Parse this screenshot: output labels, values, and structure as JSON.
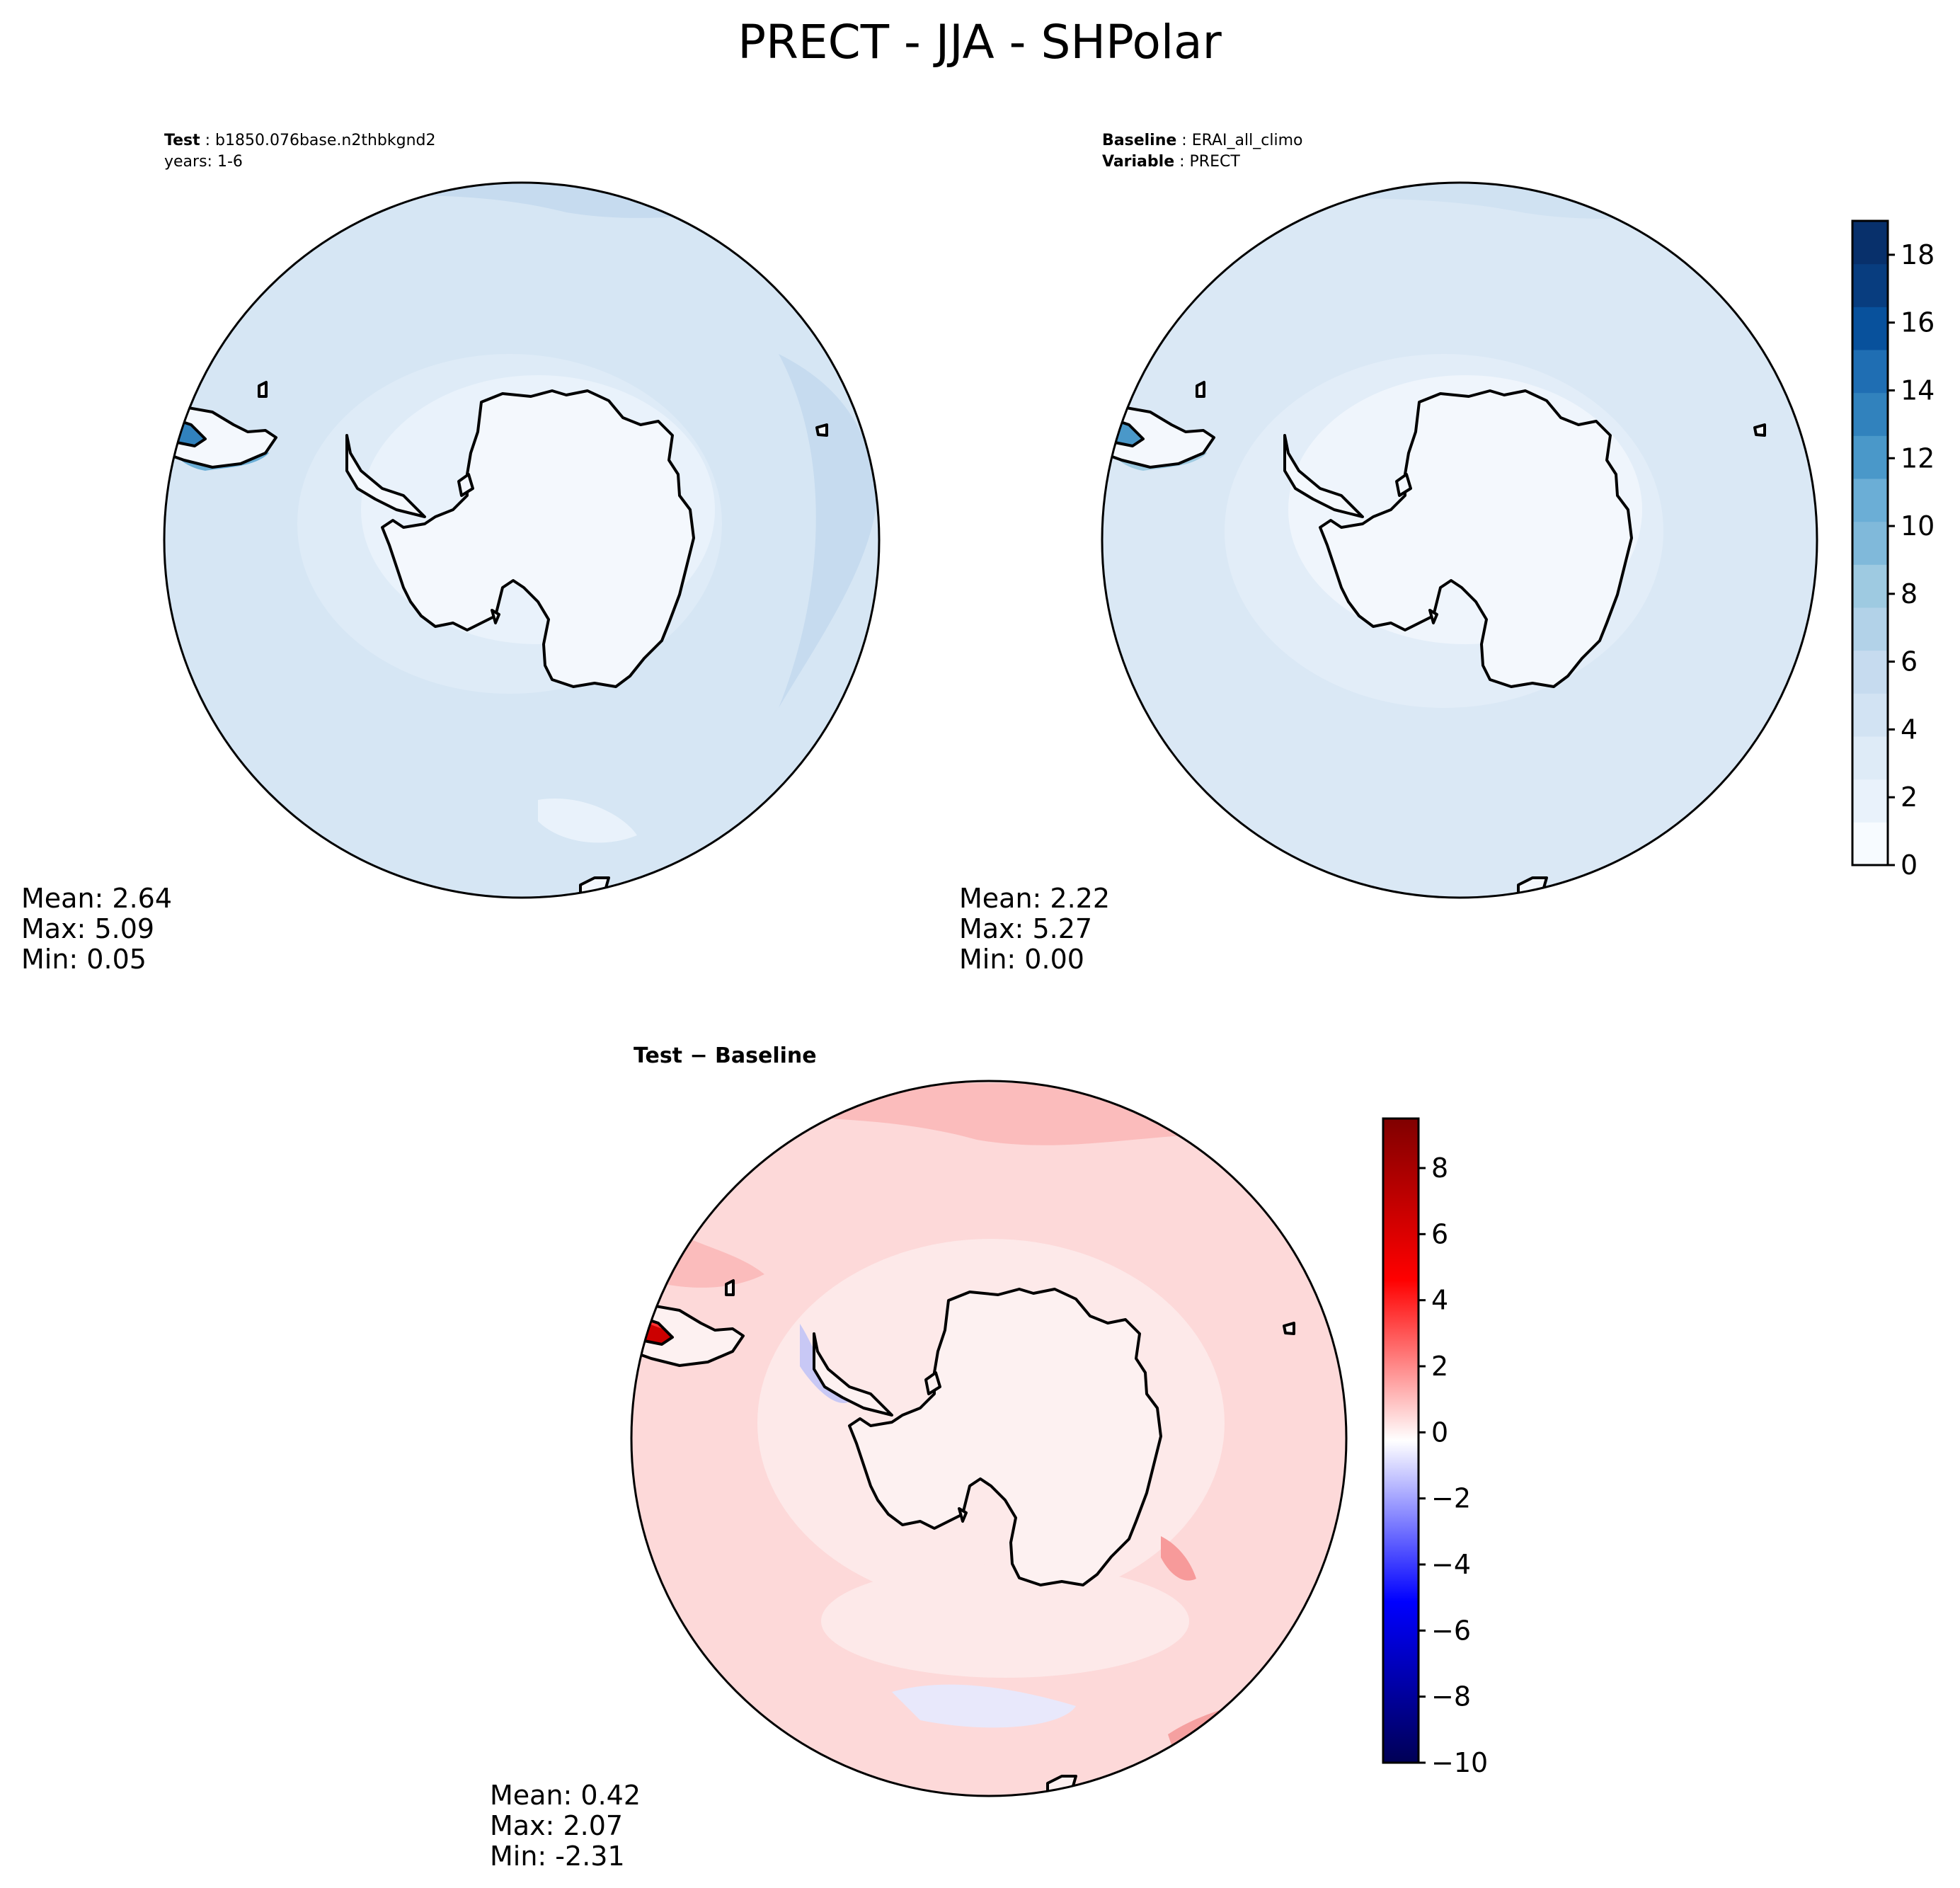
{
  "title": "PRECT - JJA - SHPolar",
  "panels": {
    "test": {
      "header_label": "Test",
      "header_value": "b1850.076base.n2thbkgnd2",
      "header_line2": "years: 1-6",
      "stats": {
        "mean": "Mean:  2.64",
        "max": "Max:  5.09",
        "min": "Min:  0.05"
      }
    },
    "baseline": {
      "header_label": "Baseline",
      "header_value": "ERAI_all_climo",
      "header_label2": "Variable",
      "header_value2": "PRECT",
      "stats": {
        "mean": "Mean:  2.22",
        "max": "Max:  5.27",
        "min": "Min:  0.00"
      }
    },
    "diff": {
      "header": "Test − Baseline",
      "stats": {
        "mean": "Mean:  0.42",
        "max": "Max:  2.07",
        "min": "Min: -2.31"
      }
    }
  },
  "colorbars": {
    "sequential": {
      "ticks": [
        "0",
        "2",
        "4",
        "6",
        "8",
        "10",
        "12",
        "14",
        "16",
        "18"
      ]
    },
    "diverging": {
      "ticks": [
        "−10",
        "−8",
        "−6",
        "−4",
        "−2",
        "0",
        "2",
        "4",
        "6",
        "8"
      ]
    }
  },
  "colors": {
    "blues": [
      "#f7fbff",
      "#e9f2fb",
      "#deebf7",
      "#d2e3f3",
      "#c6dbef",
      "#b2d2e8",
      "#9ecae1",
      "#80b9da",
      "#6baed6",
      "#4a98c9",
      "#3182bd",
      "#1f6eb3",
      "#08519c",
      "#083d7f",
      "#08306b"
    ],
    "diff_bg": "#fdd9d9",
    "diff_light": "#fde9e9",
    "diff_mid": "#fbbcbc",
    "diff_blue": "#e8e8fb"
  }
}
